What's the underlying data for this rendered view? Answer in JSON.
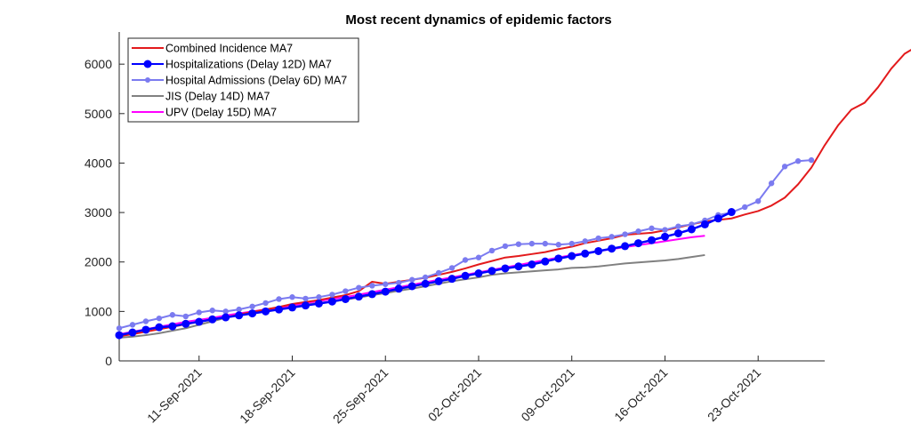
{
  "chart_data": {
    "type": "line",
    "title": "Most recent dynamics of epidemic factors",
    "xlabel": "",
    "ylabel": "",
    "x_start": "2021-09-05",
    "x_end": "2021-10-28",
    "xlim_days": [
      0,
      53
    ],
    "ylim": [
      0,
      6650
    ],
    "yticks": [
      0,
      1000,
      2000,
      3000,
      4000,
      5000,
      6000
    ],
    "ytick_labels": [
      "0",
      "1000",
      "2000",
      "3000",
      "4000",
      "5000",
      "6000"
    ],
    "xticks_days": [
      6,
      13,
      20,
      27,
      34,
      41,
      48
    ],
    "xtick_labels": [
      "11-Sep-2021",
      "18-Sep-2021",
      "25-Sep-2021",
      "02-Oct-2021",
      "09-Oct-2021",
      "16-Oct-2021",
      "23-Oct-2021"
    ],
    "grid": false,
    "legend_position": "top-left",
    "series": [
      {
        "name": "Combined Incidence MA7",
        "color": "#e31a1c",
        "marker": false,
        "start_day": 0,
        "values": [
          500,
          540,
          590,
          640,
          690,
          740,
          790,
          840,
          880,
          940,
          990,
          1040,
          1090,
          1150,
          1190,
          1230,
          1280,
          1330,
          1410,
          1600,
          1560,
          1600,
          1640,
          1680,
          1740,
          1800,
          1870,
          1950,
          2020,
          2090,
          2120,
          2160,
          2200,
          2260,
          2310,
          2380,
          2430,
          2480,
          2550,
          2570,
          2590,
          2640,
          2700,
          2760,
          2820,
          2850,
          2880,
          2960,
          3030,
          3140,
          3300,
          3570,
          3910,
          4360,
          4760,
          5080,
          5220,
          5530,
          5910,
          6210,
          6370
        ]
      },
      {
        "name": "Hospitalizations (Delay 12D) MA7",
        "color": "#0000ff",
        "marker": "large",
        "start_day": 0,
        "values": [
          520,
          575,
          630,
          680,
          700,
          750,
          790,
          840,
          880,
          920,
          960,
          1000,
          1040,
          1080,
          1120,
          1160,
          1200,
          1250,
          1300,
          1350,
          1400,
          1460,
          1510,
          1560,
          1610,
          1660,
          1720,
          1770,
          1820,
          1870,
          1910,
          1950,
          2010,
          2070,
          2120,
          2170,
          2220,
          2270,
          2320,
          2380,
          2440,
          2510,
          2580,
          2660,
          2760,
          2880,
          3010
        ]
      },
      {
        "name": "Hospital Admissions (Delay 6D) MA7",
        "color": "#7b7bf0",
        "marker": "small",
        "start_day": 0,
        "values": [
          660,
          730,
          800,
          860,
          930,
          900,
          980,
          1020,
          1000,
          1040,
          1100,
          1170,
          1250,
          1290,
          1260,
          1290,
          1340,
          1410,
          1480,
          1520,
          1550,
          1580,
          1640,
          1690,
          1780,
          1880,
          2040,
          2090,
          2230,
          2320,
          2360,
          2370,
          2370,
          2350,
          2370,
          2420,
          2480,
          2510,
          2560,
          2620,
          2680,
          2650,
          2720,
          2760,
          2840,
          2950,
          3000,
          3110,
          3230,
          3590,
          3930,
          4040,
          4060
        ]
      },
      {
        "name": "JIS (Delay 14D) MA7",
        "color": "#808080",
        "marker": false,
        "start_day": 0,
        "values": [
          470,
          490,
          520,
          560,
          610,
          660,
          730,
          800,
          870,
          930,
          970,
          1010,
          1060,
          1100,
          1140,
          1170,
          1200,
          1240,
          1280,
          1330,
          1370,
          1420,
          1460,
          1510,
          1560,
          1610,
          1650,
          1690,
          1740,
          1770,
          1790,
          1810,
          1830,
          1850,
          1880,
          1890,
          1910,
          1940,
          1970,
          1990,
          2010,
          2030,
          2060,
          2100,
          2140
        ]
      },
      {
        "name": "UPV (Delay 15D) MA7",
        "color": "#ff00ff",
        "marker": false,
        "start_day": 0,
        "values": [
          540,
          590,
          640,
          690,
          740,
          790,
          830,
          870,
          920,
          960,
          1000,
          1040,
          1080,
          1120,
          1170,
          1210,
          1250,
          1290,
          1340,
          1390,
          1440,
          1490,
          1540,
          1590,
          1640,
          1690,
          1740,
          1790,
          1840,
          1890,
          1940,
          1990,
          2040,
          2090,
          2140,
          2180,
          2220,
          2260,
          2300,
          2340,
          2380,
          2420,
          2460,
          2500,
          2530
        ]
      }
    ]
  }
}
